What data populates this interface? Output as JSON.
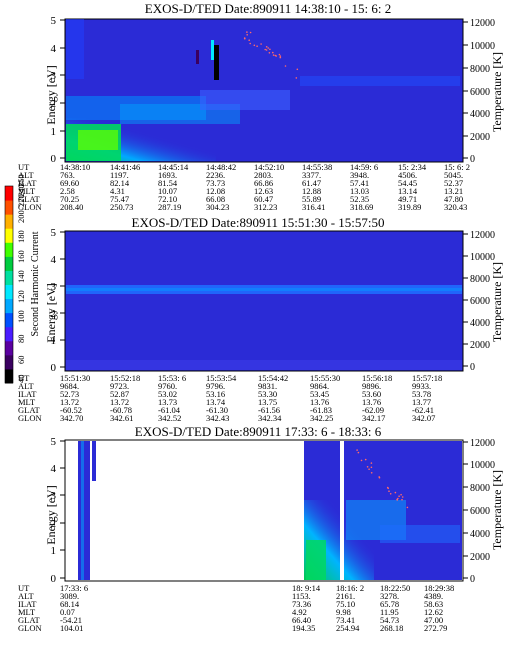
{
  "colors": {
    "background_fill": "#2b2bd6",
    "frame": "#000000",
    "temperature_dots": "#ff6a6a",
    "colorbar": [
      "#000000",
      "#3a0060",
      "#5a00a0",
      "#4a1cff",
      "#0050ff",
      "#00a8ff",
      "#00e8ff",
      "#00e0a0",
      "#00cc40",
      "#40ff00",
      "#ffff00",
      "#ffb000",
      "#ff5000",
      "#ff0000"
    ]
  },
  "colorbar": {
    "label": "Second Harmonic Current",
    "ticks": [
      "40",
      "60",
      "80",
      "100",
      "120",
      "140",
      "160",
      "180",
      "200",
      "220",
      "240",
      "250"
    ]
  },
  "chart_data": [
    {
      "type": "heatmap",
      "title": "EXOS-D/TED   Date:890911  14:38:10 - 15: 6: 2",
      "ylabel": "Energy [eV]",
      "y2label": "Temperature [K]",
      "yticks": [
        "0",
        "1",
        "2",
        "3",
        "4",
        "5"
      ],
      "y2ticks": [
        "0",
        "2000",
        "4000",
        "6000",
        "8000",
        "10000",
        "12000"
      ],
      "ylim": [
        0,
        5.2
      ],
      "y2lim": [
        0,
        12000
      ],
      "grid": false,
      "rows": [
        {
          "name": "UT",
          "values": [
            "14:38:10",
            "14:41:46",
            "14:45:14",
            "14:48:42",
            "14:52:10",
            "14:55:38",
            "14:59: 6",
            "15: 2:34",
            "15: 6: 2"
          ]
        },
        {
          "name": "ALT",
          "values": [
            "763.",
            "1197.",
            "1693.",
            "2236.",
            "2803.",
            "3377.",
            "3948.",
            "4506.",
            "5045."
          ]
        },
        {
          "name": "ILAT",
          "values": [
            "69.60",
            "82.14",
            "81.54",
            "73.73",
            "66.86",
            "61.47",
            "57.41",
            "54.45",
            "52.37"
          ]
        },
        {
          "name": "MLT",
          "values": [
            "2.58",
            "4.31",
            "10.07",
            "12.08",
            "12.63",
            "12.88",
            "13.03",
            "13.14",
            "13.21"
          ]
        },
        {
          "name": "GLAT",
          "values": [
            "70.25",
            "75.47",
            "72.10",
            "66.08",
            "60.47",
            "55.89",
            "52.35",
            "49.71",
            "47.80"
          ]
        },
        {
          "name": "GLON",
          "values": [
            "208.40",
            "250.73",
            "287.19",
            "304.23",
            "312.23",
            "316.41",
            "318.69",
            "319.89",
            "320.43"
          ]
        }
      ]
    },
    {
      "type": "heatmap",
      "title": "EXOS-D/TED   Date:890911  15:51:30 - 15:57:50",
      "ylabel": "Energy [eV]",
      "y2label": "Temperature [K]",
      "yticks": [
        "0",
        "1",
        "2",
        "3",
        "4",
        "5"
      ],
      "y2ticks": [
        "0",
        "2000",
        "4000",
        "6000",
        "8000",
        "10000",
        "12000"
      ],
      "ylim": [
        0,
        5.2
      ],
      "y2lim": [
        0,
        12000
      ],
      "grid": false,
      "rows": [
        {
          "name": "UT",
          "values": [
            "15:51:30",
            "15:52:18",
            "15:53: 6",
            "15:53:54",
            "15:54:42",
            "15:55:30",
            "15:56:18",
            "15:57:18"
          ]
        },
        {
          "name": "ALT",
          "values": [
            "9684.",
            "9723.",
            "9760.",
            "9796.",
            "9831.",
            "9864.",
            "9896.",
            "9933."
          ]
        },
        {
          "name": "ILAT",
          "values": [
            "52.73",
            "52.87",
            "53.02",
            "53.16",
            "53.30",
            "53.45",
            "53.60",
            "53.78"
          ]
        },
        {
          "name": "MLT",
          "values": [
            "13.72",
            "13.72",
            "13.73",
            "13.74",
            "13.75",
            "13.76",
            "13.76",
            "13.77"
          ]
        },
        {
          "name": "GLAT",
          "values": [
            "-60.52",
            "-60.78",
            "-61.04",
            "-61.30",
            "-61.56",
            "-61.83",
            "-62.09",
            "-62.41"
          ]
        },
        {
          "name": "GLON",
          "values": [
            "342.70",
            "342.61",
            "342.52",
            "342.43",
            "342.34",
            "342.25",
            "342.17",
            "342.07"
          ]
        }
      ]
    },
    {
      "type": "heatmap",
      "title": "EXOS-D/TED   Date:890911  17:33: 6 - 18:33: 6",
      "ylabel": "Energy [eV]",
      "y2label": "Temperature [K]",
      "yticks": [
        "0",
        "1",
        "2",
        "3",
        "4",
        "5"
      ],
      "y2ticks": [
        "0",
        "2000",
        "4000",
        "6000",
        "8000",
        "10000",
        "12000"
      ],
      "ylim": [
        0,
        5.2
      ],
      "y2lim": [
        0,
        12000
      ],
      "grid": false,
      "rows": [
        {
          "name": "UT",
          "values": [
            "17:33: 6",
            "18: 9:14",
            "18:16: 2",
            "18:22:50",
            "18:29:38"
          ]
        },
        {
          "name": "ALT",
          "values": [
            "3089.",
            "1153.",
            "2161.",
            "3278.",
            "4389."
          ]
        },
        {
          "name": "ILAT",
          "values": [
            "68.14",
            "73.36",
            "75.10",
            "65.78",
            "58.63"
          ]
        },
        {
          "name": "MLT",
          "values": [
            "0.07",
            "4.92",
            "9.98",
            "11.95",
            "12.62"
          ]
        },
        {
          "name": "GLAT",
          "values": [
            "-54.21",
            "66.40",
            "73.41",
            "54.73",
            "47.00"
          ]
        },
        {
          "name": "GLON",
          "values": [
            "104.01",
            "194.35",
            "254.94",
            "268.18",
            "272.79"
          ]
        }
      ]
    }
  ]
}
